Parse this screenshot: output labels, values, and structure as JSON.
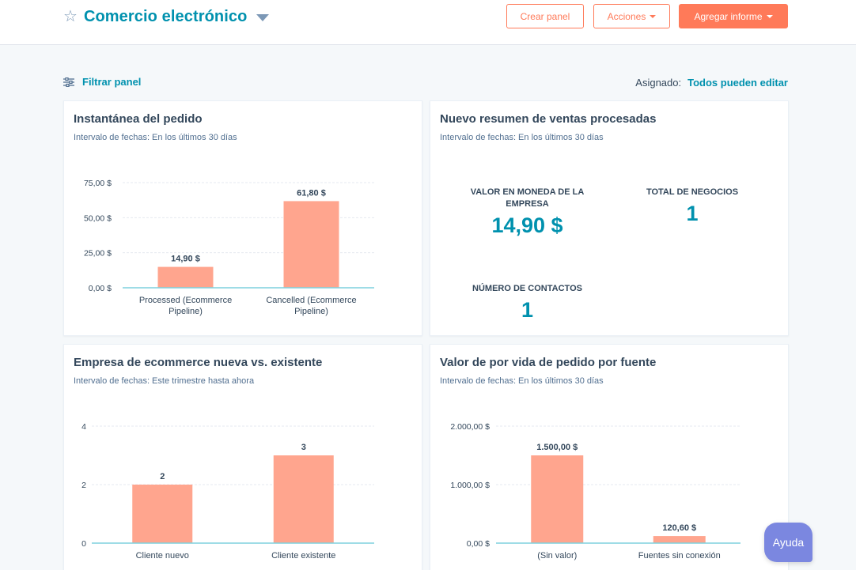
{
  "header": {
    "title": "Comercio electrónico",
    "buttons": {
      "create": "Crear panel",
      "actions": "Acciones",
      "add_report": "Agregar informe"
    }
  },
  "toolbar": {
    "filter_label": "Filtrar panel",
    "assigned_label": "Asignado:",
    "assigned_value": "Todos pueden editar"
  },
  "cards": {
    "order_snapshot": {
      "title": "Instantánea del pedido",
      "subtitle": "Intervalo de fechas:  En los últimos 30 días"
    },
    "sales_summary": {
      "title": "Nuevo resumen de ventas procesadas",
      "subtitle": "Intervalo de fechas:  En los últimos 30 días",
      "kpis": {
        "company_value_label": "VALOR EN MONEDA DE LA EMPRESA",
        "company_value": "14,90 $",
        "total_deals_label": "TOTAL DE NEGOCIOS",
        "total_deals": "1",
        "contacts_label": "NÚMERO DE CONTACTOS",
        "contacts": "1"
      }
    },
    "new_vs_existing": {
      "title": "Empresa de ecommerce nueva vs. existente",
      "subtitle": "Intervalo de fechas:  Este trimestre hasta ahora"
    },
    "lifetime_value": {
      "title": "Valor de por vida de pedido por fuente",
      "subtitle": "Intervalo de fechas:  En los últimos 30 días"
    }
  },
  "help": {
    "label": "Ayuda"
  },
  "colors": {
    "accent": "#0091ae",
    "bar": "#ffa58e",
    "brand": "#ff7a59",
    "axis": "#7fd1de"
  },
  "chart_data": [
    {
      "id": "order_snapshot",
      "type": "bar",
      "categories": [
        [
          "Processed (Ecommerce",
          "Pipeline)"
        ],
        [
          "Cancelled (Ecommerce",
          "Pipeline)"
        ]
      ],
      "values": [
        14.9,
        61.8
      ],
      "value_labels": [
        "14,90 $",
        "61,80 $"
      ],
      "ylim": [
        0,
        75
      ],
      "yticks": [
        0,
        25,
        50,
        75
      ],
      "ytick_labels": [
        "0,00 $",
        "25,00 $",
        "50,00 $",
        "75,00 $"
      ]
    },
    {
      "id": "new_vs_existing",
      "type": "bar",
      "categories": [
        [
          "Cliente nuevo"
        ],
        [
          "Cliente existente"
        ]
      ],
      "values": [
        2,
        3
      ],
      "value_labels": [
        "2",
        "3"
      ],
      "ylim": [
        0,
        4
      ],
      "yticks": [
        0,
        2,
        4
      ],
      "ytick_labels": [
        "0",
        "2",
        "4"
      ]
    },
    {
      "id": "lifetime_value",
      "type": "bar",
      "categories": [
        [
          "(Sin valor)"
        ],
        [
          "Fuentes sin conexión"
        ]
      ],
      "values": [
        1500,
        120.6
      ],
      "value_labels": [
        "1.500,00 $",
        "120,60 $"
      ],
      "ylim": [
        0,
        2000
      ],
      "yticks": [
        0,
        1000,
        2000
      ],
      "ytick_labels": [
        "0,00 $",
        "1.000,00 $",
        "2.000,00 $"
      ]
    }
  ]
}
